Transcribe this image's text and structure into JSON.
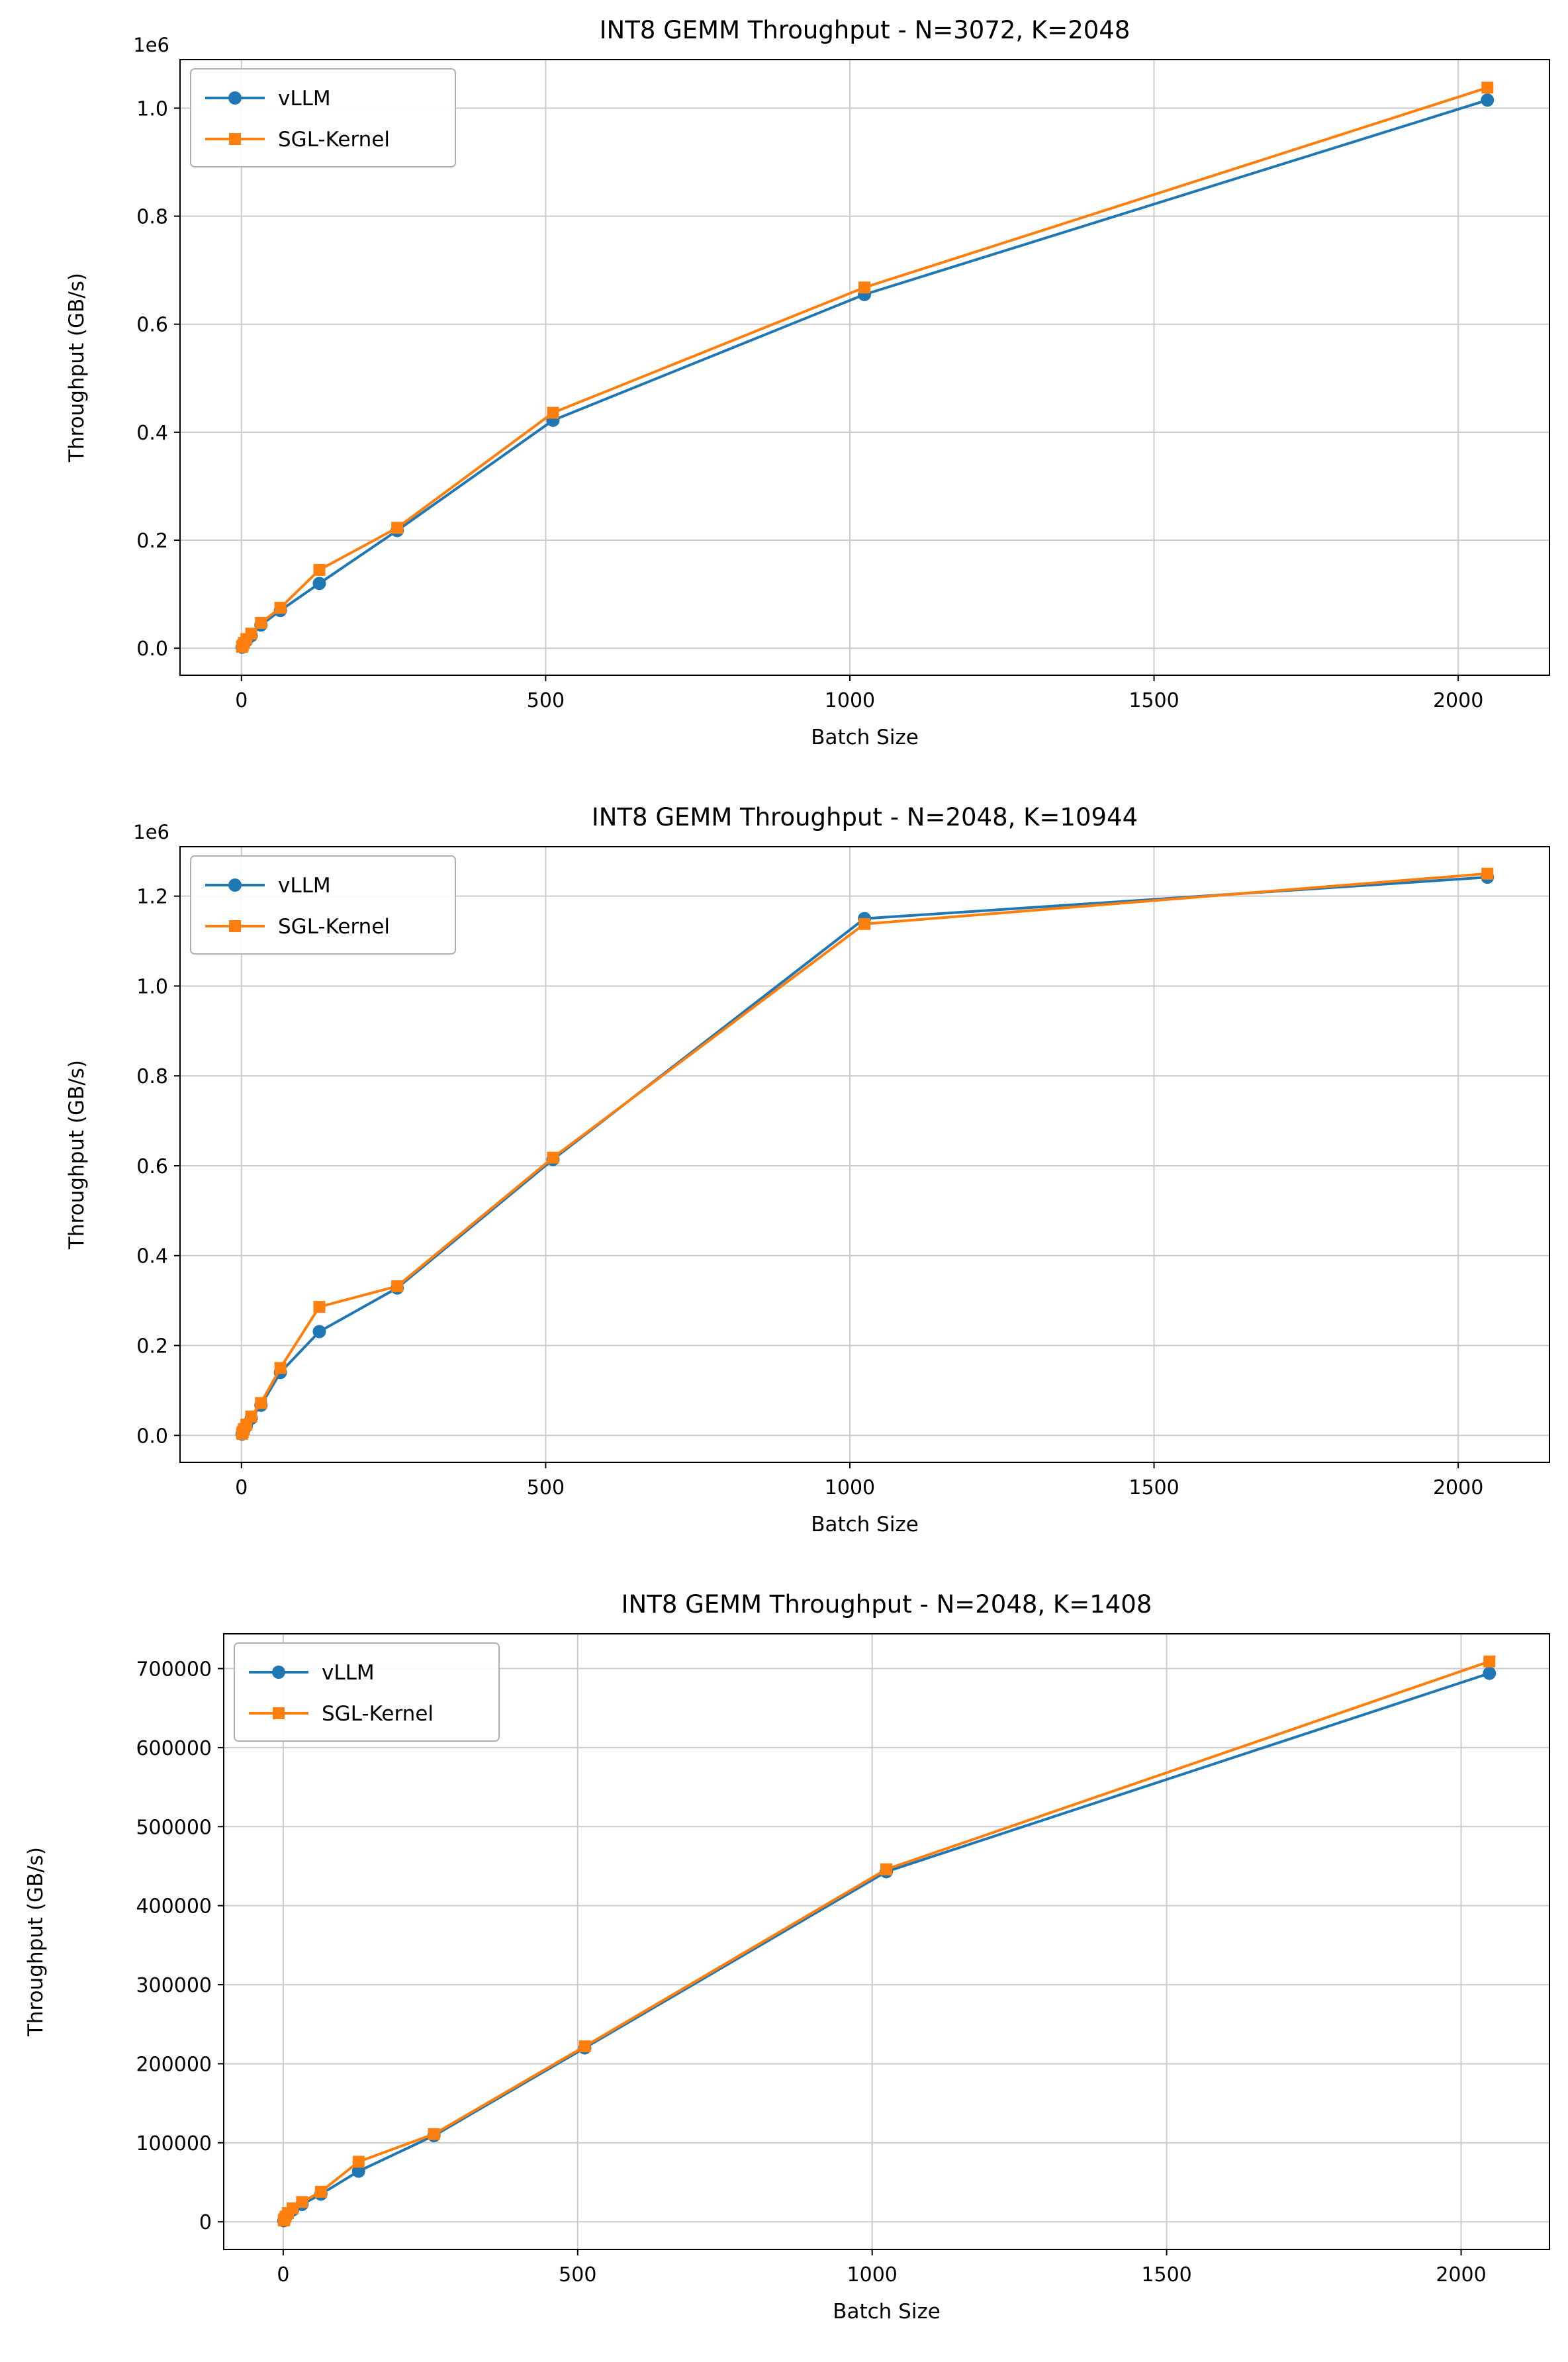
{
  "figure": {
    "background": "#ffffff"
  },
  "colors": {
    "vllm": "#1f77b4",
    "sgl_kernel": "#ff7f0e",
    "grid": "#cccccc",
    "axis": "#000000",
    "legend_border": "#b0b0b0"
  },
  "chart_data": [
    {
      "type": "line",
      "title": "INT8 GEMM Throughput - N=3072, K=2048",
      "xlabel": "Batch Size",
      "ylabel": "Throughput (GB/s)",
      "offset_text": "1e6",
      "grid": true,
      "legend_position": "upper left",
      "legend": [
        "vLLM",
        "SGL-Kernel"
      ],
      "xlim": [
        -101,
        2150
      ],
      "ylim": [
        -50000,
        1090000
      ],
      "x_tick_values": [
        0,
        500,
        1000,
        1500,
        2000
      ],
      "x_tick_labels": [
        "0",
        "500",
        "1000",
        "1500",
        "2000"
      ],
      "y_tick_values": [
        0,
        200000,
        400000,
        600000,
        800000,
        1000000
      ],
      "y_tick_labels": [
        "0.0",
        "0.2",
        "0.4",
        "0.6",
        "0.8",
        "1.0"
      ],
      "x": [
        1,
        2,
        4,
        8,
        16,
        32,
        64,
        128,
        256,
        512,
        1024,
        2048
      ],
      "series": [
        {
          "name": "vLLM",
          "color": "#1f77b4",
          "marker": "circle",
          "values": [
            2000,
            4000,
            8000,
            14000,
            23000,
            43000,
            70000,
            120000,
            218000,
            422000,
            655000,
            1015000
          ]
        },
        {
          "name": "SGL-Kernel",
          "color": "#ff7f0e",
          "marker": "square",
          "values": [
            2500,
            5000,
            10000,
            17000,
            27000,
            47000,
            75000,
            145000,
            223000,
            436000,
            668000,
            1038000
          ]
        }
      ]
    },
    {
      "type": "line",
      "title": "INT8 GEMM Throughput - N=2048, K=10944",
      "xlabel": "Batch Size",
      "ylabel": "Throughput (GB/s)",
      "offset_text": "1e6",
      "grid": true,
      "legend_position": "upper left",
      "legend": [
        "vLLM",
        "SGL-Kernel"
      ],
      "xlim": [
        -101,
        2150
      ],
      "ylim": [
        -60000,
        1310000
      ],
      "x_tick_values": [
        0,
        500,
        1000,
        1500,
        2000
      ],
      "x_tick_labels": [
        "0",
        "500",
        "1000",
        "1500",
        "2000"
      ],
      "y_tick_values": [
        0,
        200000,
        400000,
        600000,
        800000,
        1000000,
        1200000
      ],
      "y_tick_labels": [
        "0.0",
        "0.2",
        "0.4",
        "0.6",
        "0.8",
        "1.0",
        "1.2"
      ],
      "x": [
        1,
        2,
        4,
        8,
        16,
        32,
        64,
        128,
        256,
        512,
        1024,
        2048
      ],
      "series": [
        {
          "name": "vLLM",
          "color": "#1f77b4",
          "marker": "circle",
          "values": [
            3000,
            6500,
            12000,
            21000,
            38000,
            67000,
            140000,
            231000,
            328000,
            614000,
            1150000,
            1242000
          ]
        },
        {
          "name": "SGL-Kernel",
          "color": "#ff7f0e",
          "marker": "square",
          "values": [
            3500,
            7500,
            14000,
            24000,
            42000,
            72000,
            150000,
            286000,
            332000,
            618000,
            1138000,
            1250000
          ]
        }
      ]
    },
    {
      "type": "line",
      "title": "INT8 GEMM Throughput - N=2048, K=1408",
      "xlabel": "Batch Size",
      "ylabel": "Throughput (GB/s)",
      "offset_text": "",
      "grid": true,
      "legend_position": "upper left",
      "legend": [
        "vLLM",
        "SGL-Kernel"
      ],
      "xlim": [
        -101,
        2150
      ],
      "ylim": [
        -35000,
        744000
      ],
      "x_tick_values": [
        0,
        500,
        1000,
        1500,
        2000
      ],
      "x_tick_labels": [
        "0",
        "500",
        "1000",
        "1500",
        "2000"
      ],
      "y_tick_values": [
        0,
        100000,
        200000,
        300000,
        400000,
        500000,
        600000,
        700000
      ],
      "y_tick_labels": [
        "0",
        "100000",
        "200000",
        "300000",
        "400000",
        "500000",
        "600000",
        "700000"
      ],
      "x": [
        1,
        2,
        4,
        8,
        16,
        32,
        64,
        128,
        256,
        512,
        1024,
        2048
      ],
      "series": [
        {
          "name": "vLLM",
          "color": "#1f77b4",
          "marker": "circle",
          "values": [
            1400,
            2800,
            5500,
            9500,
            15000,
            22000,
            35000,
            64000,
            109000,
            220000,
            443000,
            694000
          ]
        },
        {
          "name": "SGL-Kernel",
          "color": "#ff7f0e",
          "marker": "square",
          "values": [
            1700,
            3300,
            6500,
            11000,
            17000,
            25000,
            38000,
            76000,
            111000,
            222000,
            446000,
            709000
          ]
        }
      ]
    }
  ]
}
